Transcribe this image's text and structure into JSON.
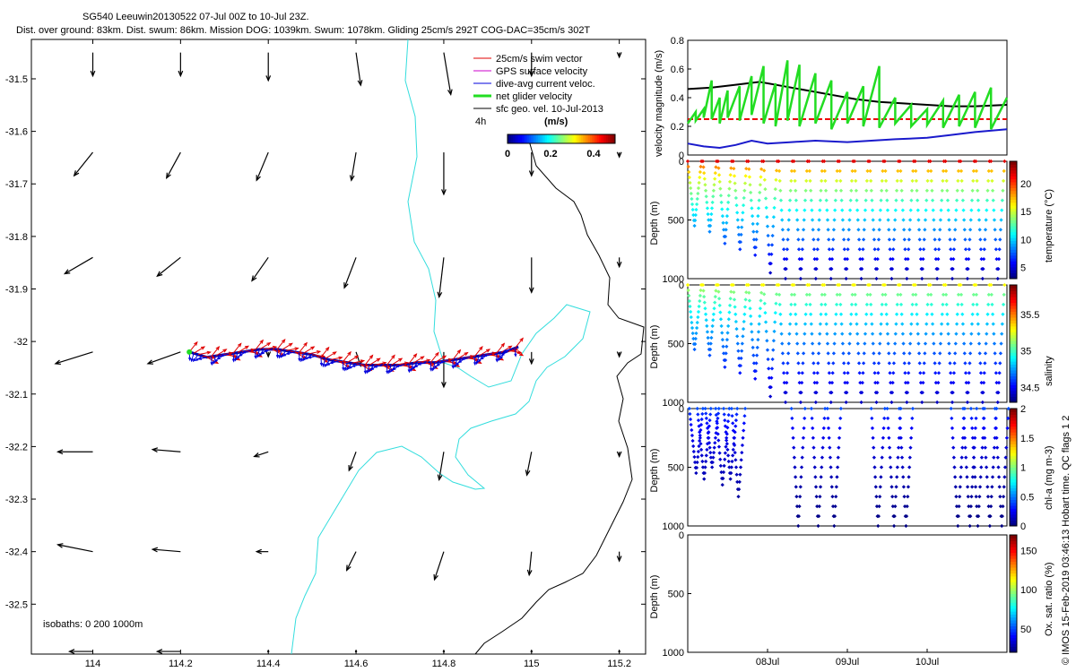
{
  "figure": {
    "title_line1": "SG540 Leeuwin20130522 07-Jul 00Z to 10-Jul 23Z.",
    "title_line2": "Dist. over ground: 83km. Dist. swum: 86km. Mission DOG: 1039km. Swum: 1078km. Gliding 25cm/s 292T COG-DAC=35cm/s 302T",
    "footer_vertical": "© IMOS 15-Feb-2019 03:46:13 Hobart time. QC flags 1  2"
  },
  "colors": {
    "swim_vector": "#e00000",
    "gps_surface_velocity": "#cc00cc",
    "dive_avg_current": "#0000dd",
    "net_glider_velocity": "#22dd22",
    "sfc_geo_vel": "#000000",
    "isobath_200": "#33dddd",
    "isobath_1000": "#000000",
    "velocity_black": "#000000",
    "velocity_red_dashed": "#ee0000",
    "velocity_blue": "#1a1acc"
  },
  "chart_data": [
    {
      "id": "map",
      "type": "quiver-map",
      "x_ticks": [
        "114",
        "114.2",
        "114.4",
        "114.6",
        "114.8",
        "115",
        "115.2"
      ],
      "y_ticks": [
        "-31.5",
        "-31.6",
        "-31.7",
        "-31.8",
        "-31.9",
        "-32",
        "-32.1",
        "-32.2",
        "-32.3",
        "-32.4",
        "-32.5"
      ],
      "xlim": [
        113.86,
        115.26
      ],
      "ylim": [
        -32.595,
        -31.425
      ],
      "legend": {
        "items": [
          "25cm/s swim vector",
          "GPS surface velocity",
          "dive-avg current veloc.",
          "net glider velocity",
          "sfc geo. vel. 10-Jul-2013"
        ],
        "interval": "4h",
        "colorbar_unit": "(m/s)",
        "colorbar_ticks": [
          "0",
          "0.2",
          "0.4"
        ]
      },
      "isobath_label": "isobaths: 0   200   1000m",
      "track": {
        "lon": [
          114.22,
          114.26,
          114.3,
          114.34,
          114.38,
          114.42,
          114.46,
          114.5,
          114.54,
          114.58,
          114.62,
          114.66,
          114.7,
          114.74,
          114.78,
          114.82,
          114.86,
          114.9,
          114.94,
          114.97
        ],
        "lat": [
          -32.02,
          -32.03,
          -32.025,
          -32.02,
          -32.015,
          -32.015,
          -32.02,
          -32.025,
          -32.035,
          -32.04,
          -32.045,
          -32.045,
          -32.045,
          -32.04,
          -32.04,
          -32.035,
          -32.03,
          -32.025,
          -32.02,
          -32.01
        ]
      },
      "geo_vectors": {
        "lon": [
          114.0,
          114.2,
          114.4,
          114.6,
          114.8,
          115.0,
          115.2
        ],
        "lat": [
          -31.45,
          -31.64,
          -31.84,
          -32.02,
          -32.21,
          -32.4,
          -32.59
        ],
        "u": [
          [
            0.0,
            0.0,
            0.0,
            0.02,
            0.03,
            0.0,
            0.0
          ],
          [
            -0.08,
            -0.06,
            -0.05,
            -0.02,
            0.0,
            0.0,
            0.0
          ],
          [
            -0.12,
            -0.1,
            -0.07,
            -0.05,
            -0.02,
            0.0,
            0.0
          ],
          [
            -0.16,
            -0.14,
            0.0,
            0.02,
            0.0,
            0.0,
            0.0
          ],
          [
            -0.15,
            -0.12,
            -0.06,
            -0.03,
            -0.02,
            -0.02,
            0.0
          ],
          [
            -0.15,
            -0.12,
            -0.05,
            -0.04,
            -0.04,
            -0.01,
            0.0
          ],
          [
            -0.1,
            -0.1,
            0.0,
            0.0,
            0.0,
            0.0,
            0.0
          ]
        ],
        "v": [
          [
            -0.1,
            -0.1,
            -0.12,
            -0.14,
            -0.18,
            -0.1,
            -0.02
          ],
          [
            -0.1,
            -0.11,
            -0.12,
            -0.12,
            -0.18,
            -0.1,
            -0.02
          ],
          [
            -0.07,
            -0.08,
            -0.1,
            -0.13,
            -0.17,
            -0.15,
            -0.04
          ],
          [
            -0.05,
            -0.05,
            -0.02,
            -0.06,
            -0.15,
            -0.05,
            -0.02
          ],
          [
            0.0,
            0.01,
            -0.02,
            -0.08,
            -0.12,
            -0.1,
            -0.02
          ],
          [
            0.03,
            0.01,
            0.0,
            -0.08,
            -0.12,
            -0.1,
            -0.04
          ],
          [
            0.0,
            0.0,
            0.0,
            0.0,
            0.0,
            0.0,
            0.0
          ]
        ]
      }
    },
    {
      "id": "velocity",
      "type": "line",
      "ylabel": "velocity magnitude (m/s)",
      "yticks": [
        "0",
        "0.2",
        "0.4",
        "0.6",
        "0.8"
      ],
      "ylim": [
        0,
        0.8
      ],
      "xlim": [
        0,
        4
      ],
      "series": [
        {
          "key": "sfc_geo",
          "color": "#000000",
          "x": [
            0.0,
            0.3,
            0.6,
            0.9,
            1.2,
            1.5,
            1.8,
            2.1,
            2.4,
            2.7,
            3.0,
            3.3,
            3.6,
            4.0
          ],
          "y": [
            0.46,
            0.47,
            0.49,
            0.51,
            0.48,
            0.45,
            0.42,
            0.39,
            0.37,
            0.36,
            0.35,
            0.34,
            0.34,
            0.35
          ]
        },
        {
          "key": "nominal_swim",
          "color": "#ee0000",
          "x": [
            0.0,
            4.0
          ],
          "y": [
            0.25,
            0.25
          ]
        },
        {
          "key": "dive_avg",
          "color": "#1a1acc",
          "x": [
            0.0,
            0.2,
            0.4,
            0.6,
            0.8,
            1.0,
            1.3,
            1.6,
            2.0,
            2.3,
            2.6,
            3.0,
            3.3,
            3.6,
            4.0
          ],
          "y": [
            0.08,
            0.06,
            0.05,
            0.07,
            0.1,
            0.08,
            0.09,
            0.1,
            0.09,
            0.1,
            0.11,
            0.12,
            0.14,
            0.16,
            0.18
          ]
        },
        {
          "key": "net_glider",
          "color": "#22dd22",
          "x": [
            0.0,
            0.1,
            0.1,
            0.2,
            0.2,
            0.3,
            0.3,
            0.4,
            0.4,
            0.5,
            0.5,
            0.65,
            0.65,
            0.8,
            0.8,
            0.95,
            0.95,
            1.1,
            1.1,
            1.25,
            1.25,
            1.4,
            1.4,
            1.6,
            1.6,
            1.8,
            1.8,
            2.0,
            2.0,
            2.2,
            2.2,
            2.4,
            2.4,
            2.6,
            2.6,
            2.8,
            2.8,
            3.0,
            3.0,
            3.2,
            3.2,
            3.4,
            3.4,
            3.6,
            3.6,
            3.8,
            3.8,
            4.0
          ],
          "y": [
            0.22,
            0.3,
            0.24,
            0.32,
            0.26,
            0.52,
            0.25,
            0.4,
            0.22,
            0.45,
            0.26,
            0.48,
            0.24,
            0.55,
            0.28,
            0.62,
            0.22,
            0.5,
            0.2,
            0.66,
            0.24,
            0.63,
            0.2,
            0.57,
            0.22,
            0.52,
            0.18,
            0.44,
            0.22,
            0.48,
            0.2,
            0.62,
            0.19,
            0.4,
            0.22,
            0.35,
            0.2,
            0.32,
            0.21,
            0.38,
            0.19,
            0.42,
            0.2,
            0.44,
            0.19,
            0.47,
            0.18,
            0.4
          ]
        }
      ]
    },
    {
      "id": "temperature",
      "type": "scatter",
      "ylabel": "Depth (m)",
      "cbar_label": "temperature (°C)",
      "yticks": [
        "0",
        "500",
        "1000"
      ],
      "cbar_ticks": [
        "5",
        "10",
        "15",
        "20"
      ],
      "cbar_range": [
        3,
        24
      ],
      "ylim": [
        0,
        1000
      ],
      "profiles": {
        "t_start": [
          0.0,
          0.19,
          0.38,
          0.57,
          0.76,
          0.95,
          1.14,
          1.33,
          1.52,
          1.71,
          1.9,
          2.09,
          2.28,
          2.47,
          2.66,
          2.85,
          3.04,
          3.23,
          3.42,
          3.61,
          3.8
        ],
        "max_depth": [
          550,
          600,
          700,
          750,
          800,
          950,
          1000,
          1000,
          1000,
          1000,
          1000,
          1000,
          1000,
          1000,
          1000,
          1000,
          1000,
          1000,
          1000,
          1000,
          1000
        ]
      },
      "surface_value": 22,
      "deep_value": 4
    },
    {
      "id": "salinity",
      "type": "scatter",
      "ylabel": "Depth (m)",
      "cbar_label": "salinity",
      "yticks": [
        "0",
        "500",
        "1000"
      ],
      "cbar_ticks": [
        "34.5",
        "35",
        "35.5"
      ],
      "cbar_range": [
        34.3,
        35.9
      ],
      "ylim": [
        0,
        1000
      ],
      "profiles": {
        "t_start": [
          0.0,
          0.19,
          0.38,
          0.57,
          0.76,
          0.95,
          1.14,
          1.33,
          1.52,
          1.71,
          1.9,
          2.09,
          2.28,
          2.47,
          2.66,
          2.85,
          3.04,
          3.23,
          3.42,
          3.61,
          3.8
        ],
        "max_depth": [
          550,
          600,
          700,
          750,
          800,
          950,
          1000,
          1000,
          1000,
          1000,
          1000,
          1000,
          1000,
          1000,
          1000,
          1000,
          1000,
          1000,
          1000,
          1000,
          1000
        ]
      },
      "surface_value": 35.3,
      "deep_value": 34.4
    },
    {
      "id": "chla",
      "type": "scatter",
      "ylabel": "Depth (m)",
      "cbar_label": "chl-a (mg m-3)",
      "yticks": [
        "0",
        "500",
        "1000"
      ],
      "cbar_ticks": [
        "0",
        "0.5",
        "1",
        "1.5",
        "2"
      ],
      "cbar_range": [
        0,
        2
      ],
      "ylim": [
        0,
        1000
      ],
      "profiles": {
        "t_start": [
          0.02,
          0.12,
          0.22,
          0.35,
          0.45,
          0.55,
          1.3,
          1.55,
          1.75,
          2.3,
          2.5,
          2.65,
          3.3,
          3.45,
          3.55,
          3.7,
          3.85
        ],
        "max_depth": [
          550,
          600,
          500,
          650,
          600,
          750,
          1000,
          1000,
          1000,
          1000,
          1000,
          1000,
          1000,
          1000,
          1000,
          1000,
          1000
        ]
      },
      "surface_value": 0.4,
      "deep_value": 0.0
    },
    {
      "id": "oxygen",
      "type": "scatter",
      "ylabel": "Depth (m)",
      "cbar_label": "Ox. sat. ratio (%)",
      "yticks": [
        "0",
        "500",
        "1000"
      ],
      "cbar_ticks": [
        "50",
        "100",
        "150"
      ],
      "cbar_range": [
        20,
        170
      ],
      "ylim": [
        0,
        1000
      ],
      "profiles": {
        "t_start": [],
        "max_depth": []
      },
      "x_ticks": [
        "08Jul",
        "09Jul",
        "10Jul"
      ],
      "x_tick_pos": [
        1.0,
        2.0,
        3.0
      ]
    }
  ]
}
